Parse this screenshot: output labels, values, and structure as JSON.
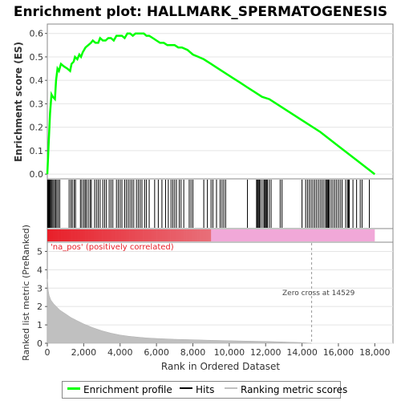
{
  "chart_data": [
    {
      "type": "line",
      "title": "Enrichment plot: HALLMARK_SPERMATOGENESIS",
      "ylabel": "Enrichment score (ES)",
      "xlim": [
        0,
        19000
      ],
      "ylim": [
        -0.02,
        0.64
      ],
      "yticks": [
        "0.0",
        "0.1",
        "0.2",
        "0.3",
        "0.4",
        "0.5",
        "0.6"
      ],
      "grid": true,
      "series": [
        {
          "name": "Enrichment profile",
          "color": "#00ff00",
          "x": [
            0,
            80,
            150,
            230,
            300,
            420,
            480,
            560,
            640,
            750,
            900,
            1100,
            1250,
            1330,
            1450,
            1520,
            1650,
            1760,
            1850,
            1950,
            2100,
            2250,
            2400,
            2500,
            2650,
            2800,
            2900,
            3050,
            3200,
            3350,
            3500,
            3650,
            3800,
            3950,
            4100,
            4250,
            4400,
            4550,
            4700,
            4850,
            5000,
            5150,
            5300,
            5450,
            5600,
            5800,
            6000,
            6200,
            6400,
            6600,
            6800,
            7000,
            7200,
            7400,
            7700,
            8000,
            8300,
            8600,
            9000,
            9400,
            9800,
            10200,
            10600,
            11000,
            11400,
            11800,
            12200,
            12600,
            13000,
            14000,
            15000,
            16000,
            17000,
            18000
          ],
          "values": [
            0.0,
            0.14,
            0.26,
            0.34,
            0.33,
            0.32,
            0.4,
            0.45,
            0.44,
            0.47,
            0.46,
            0.45,
            0.44,
            0.47,
            0.48,
            0.5,
            0.49,
            0.51,
            0.5,
            0.52,
            0.54,
            0.55,
            0.56,
            0.57,
            0.56,
            0.56,
            0.58,
            0.57,
            0.57,
            0.58,
            0.58,
            0.57,
            0.59,
            0.59,
            0.59,
            0.58,
            0.6,
            0.6,
            0.59,
            0.6,
            0.6,
            0.6,
            0.6,
            0.59,
            0.59,
            0.58,
            0.57,
            0.56,
            0.56,
            0.55,
            0.55,
            0.55,
            0.54,
            0.54,
            0.53,
            0.51,
            0.5,
            0.49,
            0.47,
            0.45,
            0.43,
            0.41,
            0.39,
            0.37,
            0.35,
            0.33,
            0.32,
            0.3,
            0.28,
            0.23,
            0.18,
            0.12,
            0.06,
            0.0
          ]
        }
      ]
    },
    {
      "type": "line",
      "series": [
        {
          "name": "Hits",
          "color": "#000000",
          "values": [
            15,
            45,
            70,
            95,
            120,
            160,
            210,
            260,
            320,
            400,
            450,
            520,
            600,
            680,
            1200,
            1300,
            1380,
            1480,
            1550,
            1820,
            1900,
            2000,
            2080,
            2150,
            2250,
            2350,
            2420,
            2600,
            2700,
            2800,
            2900,
            3050,
            3150,
            3250,
            3400,
            3500,
            3600,
            3800,
            3900,
            4000,
            4100,
            4250,
            4350,
            4450,
            4550,
            4650,
            4750,
            4900,
            5000,
            5100,
            5200,
            5350,
            5450,
            5600,
            5900,
            6100,
            6300,
            6500,
            6650,
            6800,
            6900,
            7000,
            7100,
            7250,
            7350,
            7500,
            7800,
            7900,
            8000,
            8600,
            8800,
            9000,
            9100,
            9300,
            9500,
            9600,
            9700,
            9800,
            11000,
            11500,
            11550,
            11600,
            11650,
            11700,
            11800,
            11900,
            11950,
            12000,
            12050,
            12100,
            12200,
            12300,
            12800,
            12900,
            14000,
            14200,
            14300,
            14400,
            14500,
            14600,
            14700,
            14800,
            14900,
            15000,
            15100,
            15200,
            15300,
            15350,
            15400,
            15450,
            15500,
            15600,
            15700,
            15800,
            15900,
            16000,
            16100,
            16200,
            16400,
            16500,
            16550,
            16600,
            16800,
            17000,
            17200,
            17300,
            17700
          ]
        }
      ]
    },
    {
      "type": "area",
      "ylabel": "Ranked list metric (PreRanked)",
      "xlabel": "Rank in Ordered Dataset",
      "xlim": [
        0,
        19000
      ],
      "ylim": [
        0,
        5.5
      ],
      "xticks": [
        "0",
        "2,000",
        "4,000",
        "6,000",
        "8,000",
        "10,000",
        "12,000",
        "14,000",
        "16,000",
        "18,000"
      ],
      "yticks": [
        "0",
        "1",
        "2",
        "3",
        "4",
        "5"
      ],
      "annotations": {
        "positive_label": "'na_pos' (positively correlated)",
        "zero_cross": "Zero cross at 14529"
      },
      "zero_cross_rank": 14529,
      "colors": {
        "positive": "#e8202a",
        "negative": "#f1a8d8"
      },
      "series": [
        {
          "name": "Ranking metric scores",
          "color": "#c0c0c0",
          "x": [
            0,
            20,
            50,
            100,
            200,
            350,
            500,
            700,
            1000,
            1300,
            1600,
            2000,
            2500,
            3000,
            3500,
            4000,
            4500,
            5000,
            5500,
            6000,
            7000,
            8000,
            9000,
            10000,
            11000,
            12000,
            13000,
            14000,
            14529
          ],
          "values": [
            3.5,
            3.3,
            2.9,
            2.6,
            2.35,
            2.15,
            2.0,
            1.8,
            1.6,
            1.4,
            1.25,
            1.05,
            0.85,
            0.68,
            0.55,
            0.45,
            0.38,
            0.33,
            0.29,
            0.26,
            0.22,
            0.19,
            0.16,
            0.14,
            0.12,
            0.1,
            0.07,
            0.04,
            0.0
          ]
        }
      ]
    }
  ],
  "legend": {
    "items": [
      {
        "label": "Enrichment profile",
        "color": "#00ff00"
      },
      {
        "label": "Hits",
        "color": "#000000"
      },
      {
        "label": "Ranking metric scores",
        "color": "#c0c0c0"
      }
    ]
  }
}
